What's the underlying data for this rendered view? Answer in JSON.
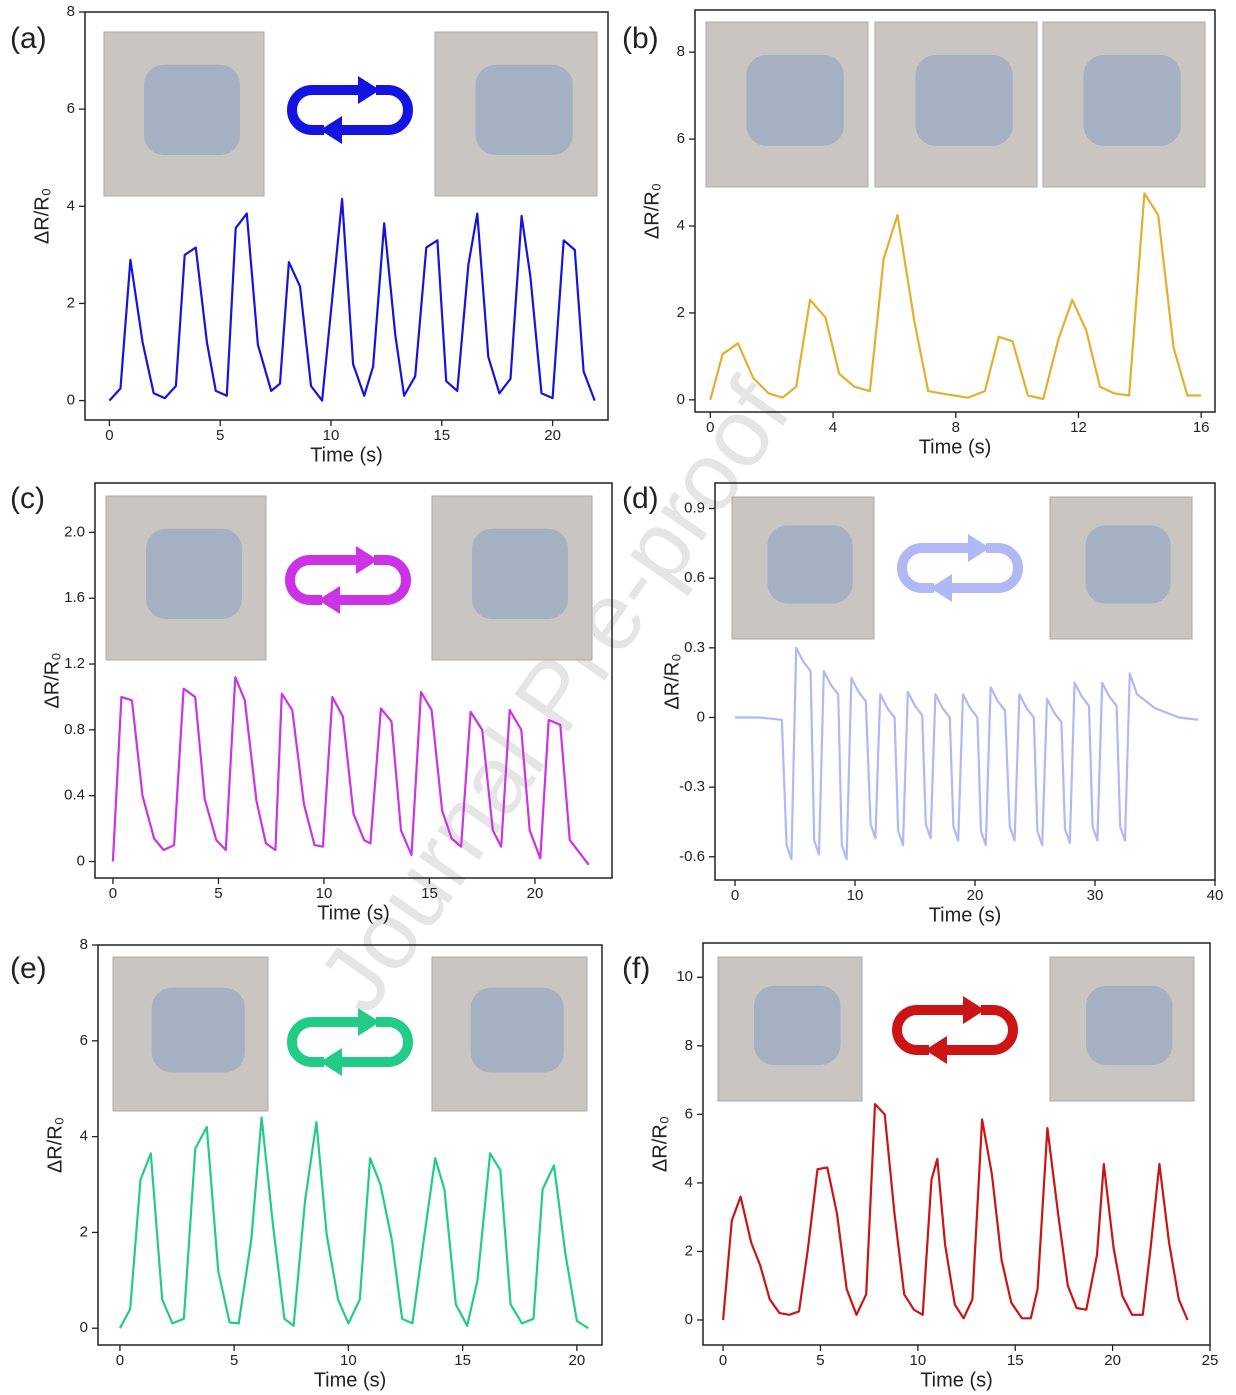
{
  "watermark": "Journal Pre-proof",
  "chart_data": [
    {
      "type": "line",
      "panel_label": "(a)",
      "xlabel": "Time (s)",
      "ylabel": "ΔR/R₀",
      "xlim": [
        -1.1,
        22.5
      ],
      "ylim": [
        -0.4,
        8
      ],
      "xticks": [
        0,
        5,
        10,
        15,
        20
      ],
      "yticks": [
        0,
        2,
        4,
        6,
        8
      ],
      "x": [
        0,
        0.5,
        0.95,
        1.5,
        2,
        2.5,
        3,
        3.4,
        3.9,
        4.4,
        4.8,
        5.3,
        5.7,
        6.2,
        6.7,
        7.3,
        7.7,
        8.1,
        8.6,
        9.1,
        9.6,
        10.5,
        11,
        11.5,
        11.9,
        12.4,
        12.9,
        13.3,
        13.8,
        14.3,
        14.8,
        15.2,
        15.7,
        16.2,
        16.6,
        17.1,
        17.6,
        18.1,
        18.6,
        19,
        19.5,
        20,
        20.5,
        21,
        21.4,
        21.9
      ],
      "series": [
        {
          "color": "#1414e0",
          "values": [
            0,
            0.25,
            2.9,
            1.2,
            0.15,
            0.05,
            0.3,
            3.0,
            3.15,
            1.2,
            0.2,
            0.1,
            3.55,
            3.85,
            1.15,
            0.2,
            0.35,
            2.85,
            2.35,
            0.3,
            0,
            4.15,
            0.75,
            0.1,
            0.7,
            3.65,
            1.35,
            0.1,
            0.5,
            3.15,
            3.3,
            0.4,
            0.2,
            2.8,
            3.85,
            0.9,
            0.15,
            0.45,
            3.8,
            2.55,
            0.15,
            0.05,
            3.3,
            3.1,
            0.6,
            0
          ]
        }
      ]
    },
    {
      "type": "line",
      "panel_label": "(b)",
      "xlabel": "Time (s)",
      "ylabel": "ΔR/R₀",
      "xlim": [
        -0.5,
        16.45
      ],
      "ylim": [
        -0.28,
        8.97
      ],
      "xticks": [
        0,
        4,
        8,
        12,
        16
      ],
      "yticks": [
        0,
        2,
        4,
        6,
        8
      ],
      "x": [
        0,
        0.4,
        0.9,
        1.4,
        1.9,
        2.35,
        2.8,
        3.25,
        3.75,
        4.2,
        4.7,
        5.2,
        5.65,
        6.1,
        6.65,
        7.1,
        7.5,
        8.4,
        8.95,
        9.4,
        9.85,
        10.35,
        10.85,
        11.35,
        11.8,
        12.25,
        12.7,
        13.15,
        13.65,
        14.15,
        14.6,
        15.1,
        15.55,
        16
      ],
      "series": [
        {
          "color": "#e6ae2e",
          "values": [
            0,
            1.05,
            1.3,
            0.5,
            0.15,
            0.05,
            0.3,
            2.3,
            1.9,
            0.6,
            0.3,
            0.2,
            3.25,
            4.25,
            1.8,
            0.2,
            0.15,
            0.05,
            0.2,
            1.45,
            1.35,
            0.1,
            0.02,
            1.4,
            2.3,
            1.6,
            0.3,
            0.15,
            0.1,
            4.75,
            4.25,
            1.2,
            0.1,
            0.1
          ]
        }
      ]
    },
    {
      "type": "line",
      "panel_label": "(c)",
      "xlabel": "Time (s)",
      "ylabel": "ΔR/R₀",
      "xlim": [
        -0.85,
        23.65
      ],
      "ylim": [
        -0.1,
        2.3
      ],
      "xticks": [
        0,
        5,
        10,
        15,
        20
      ],
      "yticks": [
        0,
        0.4,
        0.8,
        1.2,
        1.6,
        {
          "value": 2,
          "label": "2.0"
        }
      ],
      "x": [
        0,
        0.4,
        0.9,
        1.4,
        1.95,
        2.4,
        2.9,
        3.35,
        3.9,
        4.35,
        4.9,
        5.35,
        5.8,
        6.25,
        6.8,
        7.25,
        7.7,
        8,
        8.5,
        9.05,
        9.55,
        9.95,
        10.4,
        10.9,
        11.4,
        11.9,
        12.2,
        12.7,
        13.2,
        13.65,
        14.15,
        14.6,
        15.1,
        15.6,
        16.05,
        16.5,
        16.95,
        17.5,
        18,
        18.4,
        18.8,
        19.35,
        19.75,
        20.25,
        20.65,
        21.2,
        21.65,
        22.55
      ],
      "series": [
        {
          "color": "#cc33e6",
          "values": [
            0,
            1.0,
            0.98,
            0.4,
            0.14,
            0.07,
            0.1,
            1.05,
            1.0,
            0.38,
            0.13,
            0.07,
            1.12,
            0.98,
            0.37,
            0.11,
            0.07,
            1.02,
            0.92,
            0.35,
            0.1,
            0.09,
            1.0,
            0.88,
            0.29,
            0.13,
            0.11,
            0.93,
            0.85,
            0.19,
            0.04,
            1.03,
            0.92,
            0.31,
            0.14,
            0.09,
            0.91,
            0.8,
            0.19,
            0.09,
            0.92,
            0.8,
            0.19,
            0.02,
            0.86,
            0.83,
            0.13,
            -0.02
          ]
        }
      ]
    },
    {
      "type": "line",
      "panel_label": "(d)",
      "xlabel": "Time (s)",
      "ylabel": "ΔR/R₀",
      "xlim": [
        -1.67,
        40
      ],
      "ylim": [
        -0.7,
        1.01
      ],
      "xticks": [
        0,
        10,
        20,
        30,
        40
      ],
      "yticks": [
        -0.6,
        -0.3,
        0,
        0.3,
        0.6,
        0.9
      ],
      "x": [
        0,
        2,
        3.9,
        4.3,
        4.7,
        5.1,
        5.7,
        6.3,
        6.6,
        7.0,
        7.4,
        8.0,
        8.6,
        8.9,
        9.3,
        9.7,
        10.3,
        10.9,
        11.3,
        11.7,
        12.1,
        12.7,
        13.3,
        13.6,
        14.0,
        14.4,
        15.0,
        15.6,
        15.9,
        16.3,
        16.7,
        17.3,
        17.9,
        18.2,
        18.6,
        19.0,
        19.6,
        20.2,
        20.5,
        20.9,
        21.3,
        21.9,
        22.5,
        22.9,
        23.3,
        23.7,
        24.3,
        24.9,
        25.2,
        25.6,
        26.0,
        26.6,
        27.2,
        27.5,
        27.9,
        28.3,
        28.9,
        29.5,
        29.8,
        30.2,
        30.6,
        31.2,
        31.8,
        32.1,
        32.5,
        32.9,
        33.5,
        35,
        37,
        38.6
      ],
      "series": [
        {
          "color": "#b0b8f5",
          "values": [
            0,
            0,
            -0.01,
            -0.55,
            -0.61,
            0.3,
            0.24,
            0.2,
            -0.53,
            -0.59,
            0.2,
            0.14,
            0.1,
            -0.55,
            -0.61,
            0.17,
            0.11,
            0.07,
            -0.46,
            -0.52,
            0.1,
            0.04,
            0,
            -0.49,
            -0.55,
            0.11,
            0.05,
            0.01,
            -0.46,
            -0.52,
            0.1,
            0.04,
            0,
            -0.47,
            -0.53,
            0.1,
            0.04,
            0,
            -0.49,
            -0.55,
            0.13,
            0.07,
            0.03,
            -0.47,
            -0.53,
            0.1,
            0.04,
            0,
            -0.49,
            -0.55,
            0.08,
            0.02,
            -0.02,
            -0.48,
            -0.54,
            0.15,
            0.09,
            0.05,
            -0.47,
            -0.53,
            0.15,
            0.09,
            0.05,
            -0.47,
            -0.53,
            0.19,
            0.1,
            0.04,
            0,
            -0.01
          ]
        }
      ]
    },
    {
      "type": "line",
      "panel_label": "(e)",
      "xlabel": "Time (s)",
      "ylabel": "ΔR/R₀",
      "xlim": [
        -0.96,
        21.1
      ],
      "ylim": [
        -0.35,
        8
      ],
      "xticks": [
        0,
        5,
        10,
        15,
        20
      ],
      "yticks": [
        0,
        2,
        4,
        6,
        8
      ],
      "x": [
        0,
        0.45,
        0.9,
        1.35,
        1.85,
        2.3,
        2.8,
        3.3,
        3.8,
        4.3,
        4.8,
        5.2,
        5.75,
        6.2,
        6.7,
        7.2,
        7.6,
        8.1,
        8.6,
        9.05,
        9.55,
        10,
        10.5,
        10.95,
        11.4,
        11.9,
        12.35,
        12.8,
        13.3,
        13.8,
        14.2,
        14.7,
        15.2,
        15.65,
        16.2,
        16.65,
        17.1,
        17.6,
        18.1,
        18.5,
        19,
        19.5,
        20,
        20.5
      ],
      "series": [
        {
          "color": "#22cc88",
          "values": [
            0,
            0.4,
            3.1,
            3.65,
            0.6,
            0.1,
            0.2,
            3.75,
            4.2,
            1.2,
            0.12,
            0.1,
            1.85,
            4.4,
            2.15,
            0.2,
            0.05,
            2.65,
            4.3,
            1.95,
            0.6,
            0.1,
            0.6,
            3.55,
            3.0,
            1.85,
            0.2,
            0.1,
            1.85,
            3.55,
            2.9,
            0.5,
            0.05,
            1.0,
            3.65,
            3.3,
            0.5,
            0.1,
            0.2,
            2.9,
            3.4,
            1.55,
            0.15,
            0
          ]
        }
      ]
    },
    {
      "type": "line",
      "panel_label": "(f)",
      "xlabel": "Time (s)",
      "ylabel": "ΔR/R₀",
      "xlim": [
        -1.03,
        25
      ],
      "ylim": [
        -0.73,
        11
      ],
      "xticks": [
        0,
        5,
        10,
        15,
        20,
        25
      ],
      "yticks": [
        0,
        2,
        4,
        6,
        8,
        10
      ],
      "x": [
        0,
        0.45,
        0.9,
        1.45,
        1.9,
        2.4,
        2.9,
        3.4,
        3.9,
        4.35,
        4.85,
        5.35,
        5.85,
        6.35,
        6.85,
        7.35,
        7.8,
        8.3,
        8.8,
        9.3,
        9.8,
        10.25,
        10.7,
        11,
        11.4,
        11.9,
        12.35,
        12.8,
        13.3,
        13.8,
        14.3,
        14.8,
        15.35,
        15.8,
        16.15,
        16.65,
        17.2,
        17.7,
        18.15,
        18.65,
        19.2,
        19.55,
        20.05,
        20.5,
        21,
        21.55,
        21.95,
        22.4,
        22.9,
        23.4,
        23.85
      ],
      "series": [
        {
          "color": "#cc1414",
          "values": [
            0,
            2.9,
            3.6,
            2.25,
            1.6,
            0.6,
            0.2,
            0.15,
            0.25,
            2.05,
            4.4,
            4.45,
            3.1,
            0.9,
            0.15,
            0.75,
            6.3,
            6.0,
            3.1,
            0.75,
            0.3,
            0.15,
            4.1,
            4.7,
            2.2,
            0.45,
            0.05,
            0.6,
            5.85,
            4.25,
            1.75,
            0.5,
            0.05,
            0.05,
            0.9,
            5.6,
            3.1,
            1.0,
            0.35,
            0.3,
            1.9,
            4.55,
            2.1,
            0.7,
            0.15,
            0.15,
            2.1,
            4.55,
            2.25,
            0.6,
            0
          ]
        }
      ]
    }
  ]
}
